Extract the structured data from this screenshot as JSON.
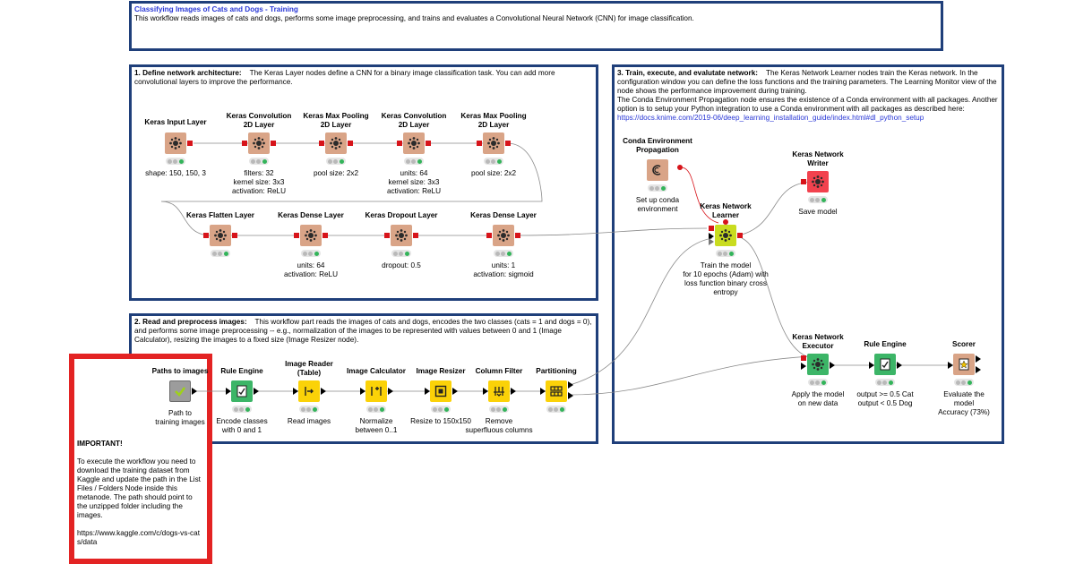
{
  "workflow": {
    "title": "Classifying Images of Cats and Dogs - Training",
    "description": "This workflow reads images of cats and dogs, performs some image preprocessing, and trains and evaluates a Convolutional Neural Network (CNN) for image classification."
  },
  "section1": {
    "heading": "1. Define network architecture:",
    "text": "The Keras Layer nodes define a CNN for a binary image classification task. You can add more convolutional layers to improve the performance."
  },
  "section2": {
    "heading": "2. Read and preprocess images:",
    "text": "This workflow part reads the images of cats and dogs, encodes the two classes (cats = 1 and dogs = 0), and performs some image preprocessing -- e.g., normalization of the images to be represented with values between 0 and 1 (Image Calculator), resizing the images to a fixed size (Image Resizer node)."
  },
  "section3": {
    "heading": "3. Train, execute, and evalutate network:",
    "text1": "The Keras Network Learner nodes train the Keras network. In the configuration window you can define the loss functions and the training parameters. The Learning Monitor view of the node shows the performance improvement during training.",
    "text2": "The Conda Environment Propagation node ensures the existence of a Conda environment with all packages. Another option is to setup your Python integration to use a Conda environment with all packages as described here:",
    "link": "https://docs.knime.com/2019-06/deep_learning_installation_guide/index.html#dl_python_setup"
  },
  "important": {
    "heading": "IMPORTANT!",
    "text": "To execute the workflow you need to download the training dataset from Kaggle and update the path in the List Files / Folders Node inside this metanode. The path should point to the unzipped folder including the images.",
    "url": "https://www.kaggle.com/c/dogs-vs-cats/data"
  },
  "nodes": {
    "keras_input": {
      "name": "Keras Input Layer",
      "desc": "shape: 150, 150, 3"
    },
    "conv1": {
      "name": "Keras Convolution 2D Layer",
      "desc": "filters: 32\nkernel size: 3x3\nactivation: ReLU"
    },
    "pool1": {
      "name": "Keras Max Pooling 2D Layer",
      "desc": "pool size: 2x2"
    },
    "conv2": {
      "name": "Keras Convolution 2D Layer",
      "desc": "units: 64\nkernel size: 3x3\nactivation: ReLU"
    },
    "pool2": {
      "name": "Keras Max Pooling 2D Layer",
      "desc": "pool size: 2x2"
    },
    "flatten": {
      "name": "Keras Flatten Layer",
      "desc": ""
    },
    "dense1": {
      "name": "Keras Dense Layer",
      "desc": "units: 64\nactivation: ReLU"
    },
    "dropout": {
      "name": "Keras Dropout Layer",
      "desc": "dropout: 0.5"
    },
    "dense2": {
      "name": "Keras Dense Layer",
      "desc": "units: 1\nactivation: sigmoid"
    },
    "paths": {
      "name": "Paths to images",
      "desc": "Path to\ntraining images"
    },
    "rule1": {
      "name": "Rule Engine",
      "desc": "Encode classes\nwith 0 and 1"
    },
    "reader": {
      "name": "Image Reader\n(Table)",
      "desc": "Read images"
    },
    "calc": {
      "name": "Image Calculator",
      "desc": "Normalize\nbetween 0..1"
    },
    "resizer": {
      "name": "Image Resizer",
      "desc": "Resize to 150x150"
    },
    "colfilter": {
      "name": "Column Filter",
      "desc": "Remove\nsuperfluous columns"
    },
    "partition": {
      "name": "Partitioning",
      "desc": ""
    },
    "conda": {
      "name": "Conda Environment\nPropagation",
      "desc": "Set up conda\nenvironment"
    },
    "learner": {
      "name": "Keras Network\nLearner",
      "desc": "Train the model\nfor 10 epochs (Adam) with\nloss function binary cross\nentropy"
    },
    "writer": {
      "name": "Keras Network\nWriter",
      "desc": "Save model"
    },
    "executor": {
      "name": "Keras Network\nExecutor",
      "desc": "Apply the model\non new data"
    },
    "rule2": {
      "name": "Rule Engine",
      "desc": "output >= 0.5 Cat\noutput < 0.5 Dog"
    },
    "scorer": {
      "name": "Scorer",
      "desc": "Evaluate the\nmodel\nAccuracy (73%)"
    }
  },
  "colors": {
    "annotation_border": "#1f3f7a",
    "important_border": "#e32323",
    "keras_node": "#d9a487",
    "manipulator_node": "#fbd208",
    "rule_node": "#3cb567",
    "title_text": "#2a38d6"
  }
}
